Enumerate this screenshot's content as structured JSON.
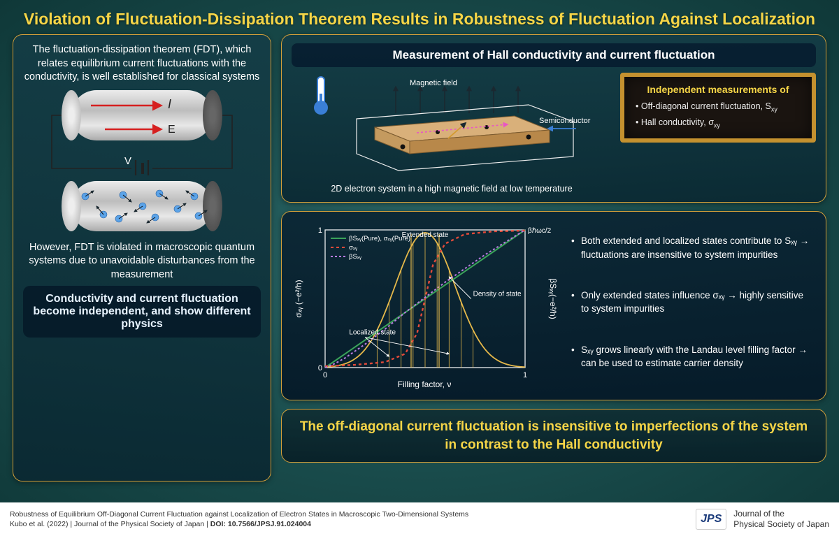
{
  "title": "Violation of Fluctuation-Dissipation Theorem Results in Robustness of Fluctuation Against Localization",
  "left": {
    "intro": "The fluctuation-dissipation theorem (FDT), which relates equilibrium current fluctuations with the conductivity, is well established for classical systems",
    "cyl1_I": "I",
    "cyl1_E": "E",
    "cyl1_V": "V",
    "secondary": "However, FDT is violated in macroscopic quantum systems due to unavoidable disturbances from  the measurement",
    "callout": "Conductivity and current fluctuation become independent, and show different physics"
  },
  "meas": {
    "header": "Measurement of Hall conductivity and current fluctuation",
    "magfield": "Magnetic field",
    "semiconductor": "Semiconductor",
    "caption": "2D electron system in a high magnetic field at low temperature",
    "chalk_title": "Independent measurements of",
    "chalk_item1_a": "Off-diagonal current fluctuation, S",
    "chalk_item1_sub": "xy",
    "chalk_item2_a": "Hall conductivity, σ",
    "chalk_item2_sub": "xy"
  },
  "chart": {
    "type": "line",
    "xlim": [
      0,
      1
    ],
    "ylim": [
      0,
      1
    ],
    "xlabel": "Filling factor, ν",
    "ylabel_left": "σₓᵧ (−e²/h)",
    "ylabel_right": "βSₓᵧ(−e²/h)",
    "top_right_label": "βℏωc/2",
    "xtick_labels": [
      "0",
      "1"
    ],
    "ytick_labels": [
      "0",
      "1"
    ],
    "legend_items": [
      "βSₓᵧ(Pure), σₓᵧ(Pure)",
      "σₓᵧ",
      "βSₓᵧ"
    ],
    "annotations": {
      "extended": "Extended state",
      "localized": "Localized state",
      "dos": "Density of state"
    },
    "colors": {
      "pure_line": "#3aa35a",
      "sigma_line": "#e24a3a",
      "betaS_line": "#b97be0",
      "dos_line": "#e5b84a",
      "grid": "#6b8a95",
      "bg": "transparent",
      "axis": "#ffffff",
      "label": "#ffffff"
    },
    "line_styles": {
      "pure": "solid",
      "sigma": "4 4",
      "betaS": "3 3"
    },
    "line_widths": {
      "pure": 2,
      "sigma": 2.4,
      "betaS": 2
    },
    "series": {
      "pure_linear": [
        [
          0,
          0
        ],
        [
          1,
          1
        ]
      ],
      "sigma_sigmoid": [
        [
          0,
          0.01
        ],
        [
          0.15,
          0.02
        ],
        [
          0.3,
          0.04
        ],
        [
          0.4,
          0.1
        ],
        [
          0.46,
          0.25
        ],
        [
          0.5,
          0.5
        ],
        [
          0.54,
          0.75
        ],
        [
          0.6,
          0.9
        ],
        [
          0.7,
          0.97
        ],
        [
          0.85,
          0.99
        ],
        [
          1,
          0.995
        ]
      ],
      "betaS": [
        [
          0,
          0
        ],
        [
          0.05,
          0.03
        ],
        [
          0.1,
          0.07
        ],
        [
          0.2,
          0.17
        ],
        [
          0.3,
          0.28
        ],
        [
          0.4,
          0.4
        ],
        [
          0.5,
          0.51
        ],
        [
          0.6,
          0.62
        ],
        [
          0.7,
          0.72
        ],
        [
          0.8,
          0.82
        ],
        [
          0.9,
          0.91
        ],
        [
          1,
          1
        ]
      ],
      "dos_gauss": {
        "mu": 0.5,
        "sigma": 0.15,
        "peak": 0.98
      }
    }
  },
  "bullets": {
    "b1": "Both extended and  localized states contribute to Sₓᵧ → fluctuations are insensitive to system impurities",
    "b2": "Only extended states influence σₓᵧ → highly sensitive to system impurities",
    "b3": "Sₓᵧ grows linearly with the Landau level filling factor → can be used to estimate carrier density"
  },
  "conclusion": "The off-diagonal current fluctuation is insensitive to imperfections of the system in contrast to the Hall conductivity",
  "footer": {
    "line1": "Robustness of Equilibrium Off-Diagonal Current Fluctuation against Localization of Electron States in Macroscopic Two-Dimensional Systems",
    "line2_a": "Kubo et al. (2022)  |  Journal of the Physical Society of Japan  |  ",
    "line2_b": "DOI: 10.7566/JPSJ.91.024004",
    "journal1": "Journal of the",
    "journal2": "Physical Society of Japan",
    "logo": "JPS"
  },
  "style": {
    "title_color": "#f5d547",
    "panel_border": "#d4a03a",
    "bg_grad_inner": "#2d6b6b",
    "bg_grad_outer": "#0f3838",
    "red_arrow": "#d62020",
    "blue_dot": "#5ba3e8",
    "thermo_blue": "#3a7fd6",
    "title_fontsize": 23,
    "intro_fontsize": 14.5,
    "conclusion_fontsize": 19
  }
}
